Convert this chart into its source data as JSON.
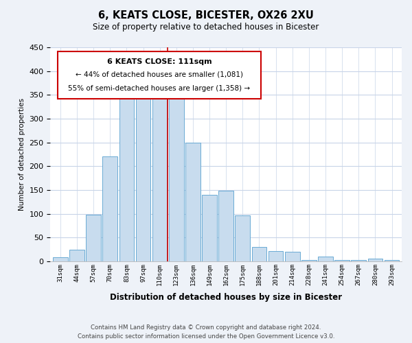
{
  "title": "6, KEATS CLOSE, BICESTER, OX26 2XU",
  "subtitle": "Size of property relative to detached houses in Bicester",
  "xlabel": "Distribution of detached houses by size in Bicester",
  "ylabel": "Number of detached properties",
  "bar_labels": [
    "31sqm",
    "44sqm",
    "57sqm",
    "70sqm",
    "83sqm",
    "97sqm",
    "110sqm",
    "123sqm",
    "136sqm",
    "149sqm",
    "162sqm",
    "175sqm",
    "188sqm",
    "201sqm",
    "214sqm",
    "228sqm",
    "241sqm",
    "254sqm",
    "267sqm",
    "280sqm",
    "293sqm"
  ],
  "bar_values": [
    8,
    25,
    98,
    220,
    360,
    368,
    368,
    355,
    250,
    140,
    148,
    97,
    30,
    22,
    20,
    2,
    10,
    2,
    2,
    5,
    2
  ],
  "bar_color": "#c8dcee",
  "bar_edge_color": "#6aaad4",
  "highlight_bar_index": 6,
  "vline_color": "#cc0000",
  "ylim": [
    0,
    450
  ],
  "yticks": [
    0,
    50,
    100,
    150,
    200,
    250,
    300,
    350,
    400,
    450
  ],
  "annotation_title": "6 KEATS CLOSE: 111sqm",
  "annotation_line1": "← 44% of detached houses are smaller (1,081)",
  "annotation_line2": "55% of semi-detached houses are larger (1,358) →",
  "annotation_box_color": "#ffffff",
  "annotation_box_edge": "#cc0000",
  "footer_line1": "Contains HM Land Registry data © Crown copyright and database right 2024.",
  "footer_line2": "Contains public sector information licensed under the Open Government Licence v3.0.",
  "bg_color": "#eef2f8",
  "plot_bg_color": "#ffffff",
  "grid_color": "#c8d4e8"
}
